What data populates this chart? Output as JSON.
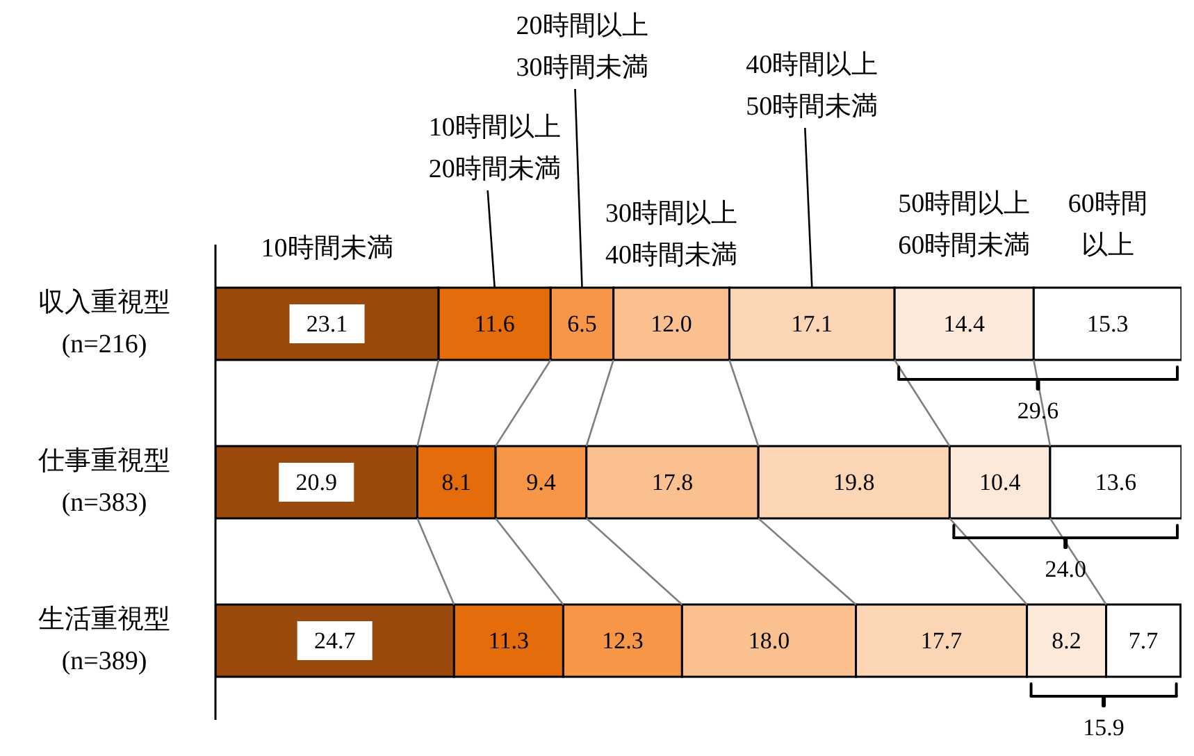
{
  "chart_data": {
    "type": "bar",
    "orientation": "horizontal",
    "stacked": true,
    "data_labels": true,
    "categories": [
      "収入重視型(n=216)",
      "仕事重視型(n=383)",
      "生活重視型(n=389)"
    ],
    "series": [
      {
        "name": "10時間未満",
        "color": "#9a4a0c",
        "values": [
          23.1,
          20.9,
          24.7
        ]
      },
      {
        "name": "10時間以上20時間未満",
        "color": "#e46c0a",
        "values": [
          11.6,
          8.1,
          11.3
        ]
      },
      {
        "name": "20時間以上30時間未満",
        "color": "#f79646",
        "values": [
          6.5,
          9.4,
          12.3
        ]
      },
      {
        "name": "30時間以上40時間未満",
        "color": "#fac090",
        "values": [
          12.0,
          17.8,
          18.0
        ],
        "value_labels": [
          "12.0",
          "17.8",
          "18.0"
        ]
      },
      {
        "name": "40時間以上50時間未満",
        "color": "#fcd5b5",
        "values": [
          17.1,
          19.8,
          17.7
        ]
      },
      {
        "name": "50時間以上60時間未満",
        "color": "#fde9d9",
        "values": [
          14.4,
          10.4,
          8.2
        ]
      },
      {
        "name": "60時間以上",
        "color": "#ffffff",
        "values": [
          15.3,
          13.6,
          7.7
        ]
      }
    ],
    "annotations": [
      "29.6",
      "24.0",
      "15.9"
    ]
  }
}
